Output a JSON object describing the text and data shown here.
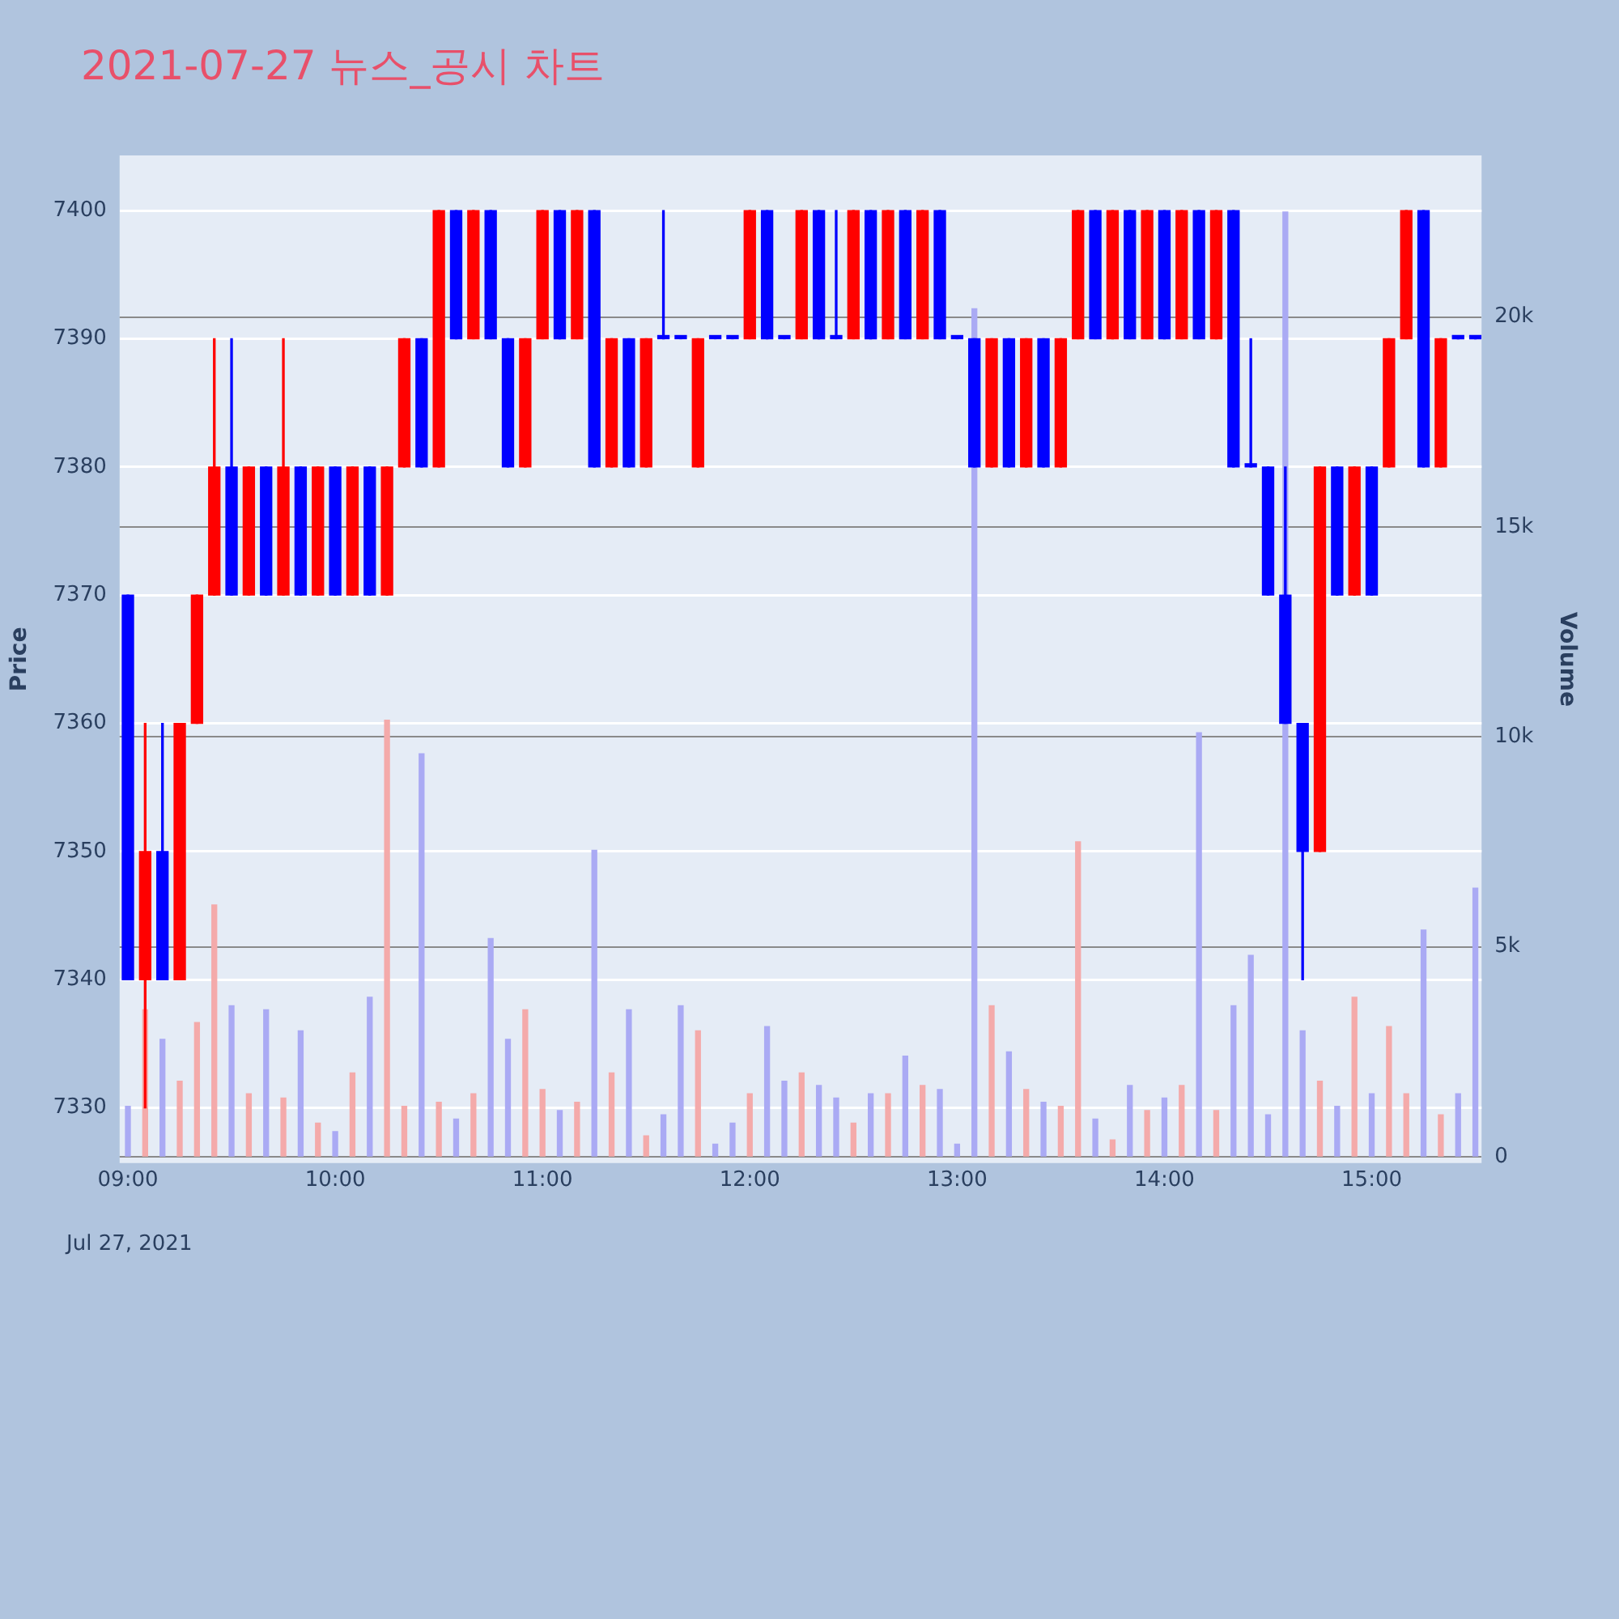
{
  "chart_data": {
    "type": "candlestick",
    "title": "2021-07-27 뉴스_공시 차트",
    "ylabel": "Price",
    "y2label": "Volume",
    "annotations": [
      "Jul 27, 2021"
    ],
    "x": [
      9,
      9.0833,
      9.1667,
      9.25,
      9.3333,
      9.4167,
      9.5,
      9.5833,
      9.6667,
      9.75,
      9.8333,
      9.9167,
      10,
      10.0833,
      10.1667,
      10.25,
      10.3333,
      10.4167,
      10.5,
      10.5833,
      10.6667,
      10.75,
      10.8333,
      10.9167,
      11,
      11.0833,
      11.1667,
      11.25,
      11.3333,
      11.4167,
      11.5,
      11.5833,
      11.6667,
      11.75,
      11.8333,
      11.9167,
      12,
      12.0833,
      12.1667,
      12.25,
      12.3333,
      12.4167,
      12.5,
      12.5833,
      12.6667,
      12.75,
      12.8333,
      12.9167,
      13,
      13.0833,
      13.1667,
      13.25,
      13.3333,
      13.4167,
      13.5,
      13.5833,
      13.6667,
      13.75,
      13.8333,
      13.9167,
      14,
      14.0833,
      14.1667,
      14.25,
      14.3333,
      14.4167,
      14.5,
      14.5833,
      14.6667,
      14.75,
      14.8333,
      14.9167,
      15,
      15.0833,
      15.1667,
      15.25,
      15.3333,
      15.4167,
      15.5
    ],
    "xlim": [
      8.96,
      15.53
    ],
    "xticks": [
      {
        "value": 9,
        "label": "09:00"
      },
      {
        "value": 10,
        "label": "10:00"
      },
      {
        "value": 11,
        "label": "11:00"
      },
      {
        "value": 12,
        "label": "12:00"
      },
      {
        "value": 13,
        "label": "13:00"
      },
      {
        "value": 14,
        "label": "14:00"
      },
      {
        "value": 15,
        "label": "15:00"
      }
    ],
    "ylim": [
      7325.7,
      7404.3
    ],
    "yticks": [
      7330,
      7340,
      7350,
      7360,
      7370,
      7380,
      7390,
      7400
    ],
    "y2lim": [
      -150,
      23850
    ],
    "y2ticks": [
      {
        "value": 0,
        "label": "0"
      },
      {
        "value": 5000,
        "label": "5k"
      },
      {
        "value": 10000,
        "label": "10k"
      },
      {
        "value": 15000,
        "label": "15k"
      },
      {
        "value": 20000,
        "label": "20k"
      }
    ],
    "grid": "y",
    "series": [
      {
        "ohlc": [
          [
            7370,
            7370,
            7340,
            7340
          ],
          [
            7340,
            7360,
            7330,
            7350
          ],
          [
            7350,
            7360,
            7340,
            7340
          ],
          [
            7340,
            7360,
            7340,
            7360
          ],
          [
            7360,
            7370,
            7360,
            7370
          ],
          [
            7370,
            7390,
            7370,
            7380
          ],
          [
            7380,
            7390,
            7370,
            7370
          ],
          [
            7370,
            7380,
            7370,
            7380
          ],
          [
            7380,
            7380,
            7370,
            7370
          ],
          [
            7370,
            7390,
            7370,
            7380
          ],
          [
            7380,
            7380,
            7370,
            7370
          ],
          [
            7370,
            7380,
            7370,
            7380
          ],
          [
            7380,
            7380,
            7370,
            7370
          ],
          [
            7370,
            7380,
            7370,
            7380
          ],
          [
            7380,
            7380,
            7370,
            7370
          ],
          [
            7370,
            7380,
            7370,
            7380
          ],
          [
            7380,
            7390,
            7380,
            7390
          ],
          [
            7390,
            7390,
            7380,
            7380
          ],
          [
            7380,
            7400,
            7380,
            7400
          ],
          [
            7400,
            7400,
            7390,
            7390
          ],
          [
            7390,
            7400,
            7390,
            7400
          ],
          [
            7400,
            7400,
            7390,
            7390
          ],
          [
            7390,
            7390,
            7380,
            7380
          ],
          [
            7380,
            7390,
            7380,
            7390
          ],
          [
            7390,
            7400,
            7390,
            7400
          ],
          [
            7400,
            7400,
            7390,
            7390
          ],
          [
            7390,
            7400,
            7390,
            7400
          ],
          [
            7400,
            7400,
            7380,
            7380
          ],
          [
            7380,
            7390,
            7380,
            7390
          ],
          [
            7390,
            7390,
            7380,
            7380
          ],
          [
            7380,
            7390,
            7380,
            7390
          ],
          [
            7390,
            7400,
            7390,
            7390
          ],
          [
            7390,
            7390,
            7390,
            7390
          ],
          [
            7380,
            7390,
            7380,
            7390
          ],
          [
            7390,
            7390,
            7390,
            7390
          ],
          [
            7390,
            7390,
            7390,
            7390
          ],
          [
            7390,
            7400,
            7390,
            7400
          ],
          [
            7400,
            7400,
            7390,
            7390
          ],
          [
            7390,
            7390,
            7390,
            7390
          ],
          [
            7390,
            7400,
            7390,
            7400
          ],
          [
            7400,
            7400,
            7390,
            7390
          ],
          [
            7390,
            7400,
            7390,
            7390
          ],
          [
            7390,
            7400,
            7390,
            7400
          ],
          [
            7400,
            7400,
            7390,
            7390
          ],
          [
            7390,
            7400,
            7390,
            7400
          ],
          [
            7400,
            7400,
            7390,
            7390
          ],
          [
            7390,
            7400,
            7390,
            7400
          ],
          [
            7400,
            7400,
            7390,
            7390
          ],
          [
            7390,
            7390,
            7390,
            7390
          ],
          [
            7390,
            7390,
            7380,
            7380
          ],
          [
            7380,
            7390,
            7380,
            7390
          ],
          [
            7390,
            7390,
            7380,
            7380
          ],
          [
            7380,
            7390,
            7380,
            7390
          ],
          [
            7390,
            7390,
            7380,
            7380
          ],
          [
            7380,
            7390,
            7380,
            7390
          ],
          [
            7390,
            7400,
            7390,
            7400
          ],
          [
            7400,
            7400,
            7390,
            7390
          ],
          [
            7390,
            7400,
            7390,
            7400
          ],
          [
            7400,
            7400,
            7390,
            7390
          ],
          [
            7390,
            7400,
            7390,
            7400
          ],
          [
            7400,
            7400,
            7390,
            7390
          ],
          [
            7390,
            7400,
            7390,
            7400
          ],
          [
            7400,
            7400,
            7390,
            7390
          ],
          [
            7390,
            7400,
            7390,
            7400
          ],
          [
            7400,
            7400,
            7380,
            7380
          ],
          [
            7380,
            7390,
            7380,
            7380
          ],
          [
            7380,
            7380,
            7370,
            7370
          ],
          [
            7370,
            7380,
            7360,
            7360
          ],
          [
            7360,
            7360,
            7340,
            7350
          ],
          [
            7350,
            7380,
            7350,
            7380
          ],
          [
            7380,
            7380,
            7370,
            7370
          ],
          [
            7370,
            7380,
            7370,
            7380
          ],
          [
            7380,
            7380,
            7370,
            7370
          ],
          [
            7380,
            7390,
            7380,
            7390
          ],
          [
            7390,
            7400,
            7390,
            7400
          ],
          [
            7400,
            7400,
            7380,
            7380
          ],
          [
            7380,
            7390,
            7380,
            7390
          ],
          [
            7390,
            7390,
            7390,
            7390
          ],
          [
            7390,
            7390,
            7390,
            7390
          ]
        ],
        "colors": [
          "#0000ff",
          "#ff0000",
          "#0000ff",
          "#ff0000",
          "#ff0000",
          "#ff0000",
          "#0000ff",
          "#ff0000",
          "#0000ff",
          "#ff0000",
          "#0000ff",
          "#ff0000",
          "#0000ff",
          "#ff0000",
          "#0000ff",
          "#ff0000",
          "#ff0000",
          "#0000ff",
          "#ff0000",
          "#0000ff",
          "#ff0000",
          "#0000ff",
          "#0000ff",
          "#ff0000",
          "#ff0000",
          "#0000ff",
          "#ff0000",
          "#0000ff",
          "#ff0000",
          "#0000ff",
          "#ff0000",
          "#0000ff",
          "#0000ff",
          "#ff0000",
          "#0000ff",
          "#0000ff",
          "#ff0000",
          "#0000ff",
          "#0000ff",
          "#ff0000",
          "#0000ff",
          "#0000ff",
          "#ff0000",
          "#0000ff",
          "#ff0000",
          "#0000ff",
          "#ff0000",
          "#0000ff",
          "#0000ff",
          "#0000ff",
          "#ff0000",
          "#0000ff",
          "#ff0000",
          "#0000ff",
          "#ff0000",
          "#ff0000",
          "#0000ff",
          "#ff0000",
          "#0000ff",
          "#ff0000",
          "#0000ff",
          "#ff0000",
          "#0000ff",
          "#ff0000",
          "#0000ff",
          "#0000ff",
          "#0000ff",
          "#0000ff",
          "#0000ff",
          "#ff0000",
          "#0000ff",
          "#ff0000",
          "#0000ff",
          "#ff0000",
          "#ff0000",
          "#0000ff",
          "#ff0000",
          "#0000ff",
          "#0000ff"
        ]
      },
      {
        "type": "bar",
        "axis": "y2",
        "values": [
          1200,
          3500,
          2800,
          1800,
          3200,
          6000,
          3600,
          1500,
          3500,
          1400,
          3000,
          800,
          600,
          2000,
          3800,
          10400,
          1200,
          9600,
          1300,
          900,
          1500,
          5200,
          2800,
          3500,
          1600,
          1100,
          1300,
          7300,
          2000,
          3500,
          500,
          1000,
          3600,
          3000,
          300,
          800,
          1500,
          3100,
          1800,
          2000,
          1700,
          1400,
          800,
          1500,
          1500,
          2400,
          1700,
          1600,
          300,
          20200,
          3600,
          2500,
          1600,
          1300,
          1200,
          7500,
          900,
          400,
          1700,
          1100,
          1400,
          1700,
          10100,
          1100,
          3600,
          4800,
          1000,
          22500,
          3000,
          1800,
          1200,
          3800,
          1500,
          3100,
          1500,
          5400,
          1000,
          1500,
          6400
        ],
        "colors": [
          "#aaaaf4",
          "#f4aaaa",
          "#aaaaf4",
          "#f4aaaa",
          "#f4aaaa",
          "#f4aaaa",
          "#aaaaf4",
          "#f4aaaa",
          "#aaaaf4",
          "#f4aaaa",
          "#aaaaf4",
          "#f4aaaa",
          "#aaaaf4",
          "#f4aaaa",
          "#aaaaf4",
          "#f4aaaa",
          "#f4aaaa",
          "#aaaaf4",
          "#f4aaaa",
          "#aaaaf4",
          "#f4aaaa",
          "#aaaaf4",
          "#aaaaf4",
          "#f4aaaa",
          "#f4aaaa",
          "#aaaaf4",
          "#f4aaaa",
          "#aaaaf4",
          "#f4aaaa",
          "#aaaaf4",
          "#f4aaaa",
          "#aaaaf4",
          "#aaaaf4",
          "#f4aaaa",
          "#aaaaf4",
          "#aaaaf4",
          "#f4aaaa",
          "#aaaaf4",
          "#aaaaf4",
          "#f4aaaa",
          "#aaaaf4",
          "#aaaaf4",
          "#f4aaaa",
          "#aaaaf4",
          "#f4aaaa",
          "#aaaaf4",
          "#f4aaaa",
          "#aaaaf4",
          "#aaaaf4",
          "#aaaaf4",
          "#f4aaaa",
          "#aaaaf4",
          "#f4aaaa",
          "#aaaaf4",
          "#f4aaaa",
          "#f4aaaa",
          "#aaaaf4",
          "#f4aaaa",
          "#aaaaf4",
          "#f4aaaa",
          "#aaaaf4",
          "#f4aaaa",
          "#aaaaf4",
          "#f4aaaa",
          "#aaaaf4",
          "#aaaaf4",
          "#aaaaf4",
          "#aaaaf4",
          "#aaaaf4",
          "#f4aaaa",
          "#aaaaf4",
          "#f4aaaa",
          "#aaaaf4",
          "#f4aaaa",
          "#f4aaaa",
          "#aaaaf4",
          "#f4aaaa",
          "#aaaaf4",
          "#aaaaf4"
        ]
      }
    ]
  }
}
